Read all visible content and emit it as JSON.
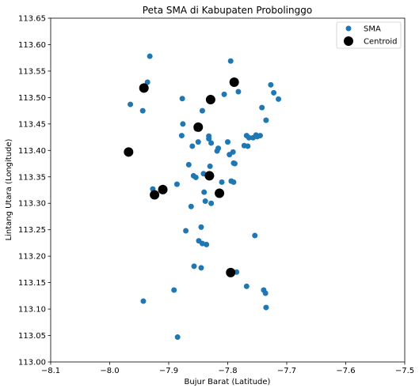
{
  "chart_data": {
    "type": "scatter",
    "title": "Peta SMA di Kabupaten Probolinggo",
    "xlabel": "Bujur Barat (Latitude)",
    "ylabel": "Lintang Utara (Longitude)",
    "xlim": [
      -8.1,
      -7.5
    ],
    "ylim": [
      113.0,
      113.65
    ],
    "xticks": [
      -8.1,
      -8.0,
      -7.9,
      -7.8,
      -7.7,
      -7.6,
      -7.5
    ],
    "xtick_labels": [
      "−8.1",
      "−8.0",
      "−7.9",
      "−7.8",
      "−7.7",
      "−7.6",
      "−7.5"
    ],
    "yticks": [
      113.0,
      113.05,
      113.1,
      113.15,
      113.2,
      113.25,
      113.3,
      113.35,
      113.4,
      113.45,
      113.5,
      113.55,
      113.6,
      113.65
    ],
    "ytick_labels": [
      "113.00",
      "113.05",
      "113.10",
      "113.15",
      "113.20",
      "113.25",
      "113.30",
      "113.35",
      "113.40",
      "113.45",
      "113.50",
      "113.55",
      "113.60",
      "113.65"
    ],
    "grid": false,
    "legend_position": "top-right",
    "series": [
      {
        "name": "SMA",
        "color": "#1f77b4",
        "points": [
          [
            -7.932,
            113.578
          ],
          [
            -7.795,
            113.569
          ],
          [
            -7.936,
            113.529
          ],
          [
            -7.727,
            113.524
          ],
          [
            -7.806,
            113.506
          ],
          [
            -7.782,
            113.511
          ],
          [
            -7.722,
            113.509
          ],
          [
            -7.877,
            113.498
          ],
          [
            -7.714,
            113.497
          ],
          [
            -7.965,
            113.487
          ],
          [
            -7.944,
            113.475
          ],
          [
            -7.843,
            113.475
          ],
          [
            -7.742,
            113.481
          ],
          [
            -7.735,
            113.457
          ],
          [
            -7.876,
            113.45
          ],
          [
            -7.853,
            113.441
          ],
          [
            -7.878,
            113.428
          ],
          [
            -7.832,
            113.427
          ],
          [
            -7.768,
            113.428
          ],
          [
            -7.764,
            113.424
          ],
          [
            -7.752,
            113.429
          ],
          [
            -7.75,
            113.426
          ],
          [
            -7.745,
            113.428
          ],
          [
            -7.757,
            113.424
          ],
          [
            -7.832,
            113.422
          ],
          [
            -7.85,
            113.416
          ],
          [
            -7.828,
            113.414
          ],
          [
            -7.8,
            113.416
          ],
          [
            -7.86,
            113.408
          ],
          [
            -7.772,
            113.409
          ],
          [
            -7.766,
            113.408
          ],
          [
            -7.816,
            113.404
          ],
          [
            -7.818,
            113.399
          ],
          [
            -7.791,
            113.397
          ],
          [
            -7.797,
            113.392
          ],
          [
            -7.788,
            113.375
          ],
          [
            -7.79,
            113.376
          ],
          [
            -7.866,
            113.373
          ],
          [
            -7.83,
            113.37
          ],
          [
            -7.841,
            113.356
          ],
          [
            -7.858,
            113.352
          ],
          [
            -7.854,
            113.349
          ],
          [
            -7.794,
            113.342
          ],
          [
            -7.79,
            113.34
          ],
          [
            -7.81,
            113.34
          ],
          [
            -7.886,
            113.336
          ],
          [
            -7.927,
            113.327
          ],
          [
            -7.84,
            113.321
          ],
          [
            -7.838,
            113.304
          ],
          [
            -7.828,
            113.3
          ],
          [
            -7.862,
            113.294
          ],
          [
            -7.845,
            113.255
          ],
          [
            -7.871,
            113.248
          ],
          [
            -7.754,
            113.239
          ],
          [
            -7.849,
            113.229
          ],
          [
            -7.843,
            113.224
          ],
          [
            -7.836,
            113.222
          ],
          [
            -7.857,
            113.181
          ],
          [
            -7.845,
            113.178
          ],
          [
            -7.785,
            113.17
          ],
          [
            -7.768,
            113.143
          ],
          [
            -7.739,
            113.136
          ],
          [
            -7.736,
            113.13
          ],
          [
            -7.891,
            113.136
          ],
          [
            -7.943,
            113.115
          ],
          [
            -7.735,
            113.103
          ],
          [
            -7.885,
            113.047
          ]
        ]
      },
      {
        "name": "Centroid",
        "color": "#000000",
        "points": [
          [
            -7.789,
            113.529
          ],
          [
            -7.942,
            113.518
          ],
          [
            -7.829,
            113.496
          ],
          [
            -7.85,
            113.444
          ],
          [
            -7.968,
            113.397
          ],
          [
            -7.831,
            113.352
          ],
          [
            -7.91,
            113.326
          ],
          [
            -7.924,
            113.316
          ],
          [
            -7.814,
            113.319
          ],
          [
            -7.795,
            113.169
          ]
        ]
      }
    ]
  }
}
